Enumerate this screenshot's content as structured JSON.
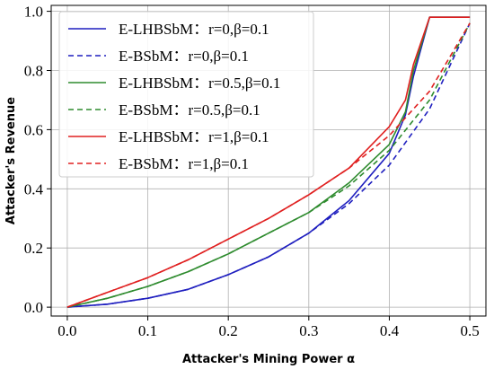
{
  "chart_data": {
    "type": "line",
    "title": "",
    "xlabel": "Attacker's Mining Power α",
    "ylabel": "Attacker's Revenue",
    "xlim": [
      -0.02,
      0.52
    ],
    "ylim": [
      -0.03,
      1.02
    ],
    "xticks": [
      "0.0",
      "0.1",
      "0.2",
      "0.3",
      "0.4",
      "0.5"
    ],
    "yticks": [
      "0.0",
      "0.2",
      "0.4",
      "0.6",
      "0.8",
      "1.0"
    ],
    "grid": true,
    "legend_position": "upper-left",
    "series": [
      {
        "name": "E-LHBSbM：r=0,β=0.1",
        "color": "#1f1fbf",
        "style": "solid",
        "x": [
          0,
          0.05,
          0.1,
          0.15,
          0.2,
          0.25,
          0.3,
          0.35,
          0.4,
          0.42,
          0.43,
          0.45,
          0.5
        ],
        "y": [
          0,
          0.01,
          0.03,
          0.06,
          0.11,
          0.17,
          0.25,
          0.36,
          0.52,
          0.65,
          0.78,
          0.98,
          0.98
        ]
      },
      {
        "name": "E-BSbM：r=0,β=0.1",
        "color": "#1f1fbf",
        "style": "dashed",
        "x": [
          0,
          0.05,
          0.1,
          0.15,
          0.2,
          0.25,
          0.3,
          0.35,
          0.4,
          0.45,
          0.5
        ],
        "y": [
          0,
          0.01,
          0.03,
          0.06,
          0.11,
          0.17,
          0.25,
          0.35,
          0.48,
          0.67,
          0.96
        ]
      },
      {
        "name": "E-LHBSbM：r=0.5,β=0.1",
        "color": "#2e8b2e",
        "style": "solid",
        "x": [
          0,
          0.05,
          0.1,
          0.15,
          0.2,
          0.25,
          0.3,
          0.35,
          0.4,
          0.42,
          0.43,
          0.45,
          0.5
        ],
        "y": [
          0,
          0.03,
          0.07,
          0.12,
          0.18,
          0.25,
          0.32,
          0.42,
          0.55,
          0.66,
          0.8,
          0.98,
          0.98
        ]
      },
      {
        "name": "E-BSbM：r=0.5,β=0.1",
        "color": "#2e8b2e",
        "style": "dashed",
        "x": [
          0,
          0.05,
          0.1,
          0.15,
          0.2,
          0.25,
          0.3,
          0.35,
          0.4,
          0.45,
          0.5
        ],
        "y": [
          0,
          0.03,
          0.07,
          0.12,
          0.18,
          0.25,
          0.32,
          0.41,
          0.53,
          0.7,
          0.96
        ]
      },
      {
        "name": "E-LHBSbM：r=1,β=0.1",
        "color": "#e02020",
        "style": "solid",
        "x": [
          0,
          0.05,
          0.1,
          0.15,
          0.2,
          0.25,
          0.3,
          0.35,
          0.4,
          0.42,
          0.43,
          0.45,
          0.5
        ],
        "y": [
          0,
          0.05,
          0.1,
          0.16,
          0.23,
          0.3,
          0.38,
          0.47,
          0.61,
          0.7,
          0.82,
          0.98,
          0.98
        ]
      },
      {
        "name": "E-BSbM：r=1,β=0.1",
        "color": "#e02020",
        "style": "dashed",
        "x": [
          0,
          0.05,
          0.1,
          0.15,
          0.2,
          0.25,
          0.3,
          0.35,
          0.4,
          0.45,
          0.5
        ],
        "y": [
          0,
          0.05,
          0.1,
          0.16,
          0.23,
          0.3,
          0.38,
          0.47,
          0.58,
          0.73,
          0.96
        ]
      }
    ]
  }
}
